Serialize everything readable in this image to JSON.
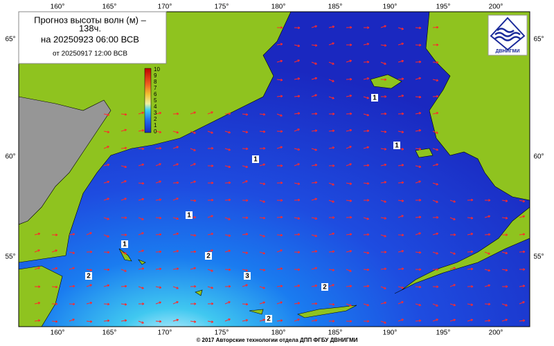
{
  "header": {
    "title": "Прогноз высоты волн (м) –",
    "lead": "138ч.",
    "valid": "на 20250923 06:00 ВСВ",
    "issued": "от 20250917 12:00 ВСВ"
  },
  "logo": {
    "label": "ДВНИГМИ"
  },
  "colorbar": {
    "labels": [
      "10",
      "9",
      "8",
      "7",
      "6",
      "5",
      "4",
      "3",
      "2",
      "1",
      "0"
    ]
  },
  "axes": {
    "lon_labels": [
      "160°",
      "165°",
      "170°",
      "175°",
      "180°",
      "185°",
      "190°",
      "195°",
      "200°"
    ],
    "lat_labels": [
      "65°",
      "60°",
      "55°"
    ]
  },
  "contour_labels": [
    1,
    1,
    1,
    1,
    1,
    2,
    2,
    2,
    2,
    3
  ],
  "footer": "© 2017 Авторские технологии отдела ДПП ФГБУ ДВНИГМИ"
}
